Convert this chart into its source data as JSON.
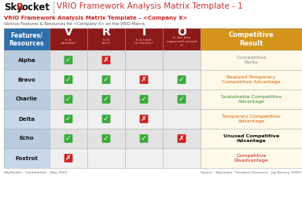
{
  "title": "VRIO Framework Analysis Matrix Template - 1",
  "subtitle": "VRIO Framework Analysis Matrix Template – <Company X>",
  "subtitle2": "Various Features & Resources for <Company X> on the VRIO Matrix.",
  "footer_left": "SkyRocket – Confidential – May 2022",
  "footer_right": "Source : Skyrocket, Timothée Denouers,  Jay Barney (1991)",
  "header_col0": "Features/\nResources",
  "header_cols": [
    "V",
    "R",
    "I",
    "O"
  ],
  "header_subs": [
    "Is it\nvaluable?",
    "Is it\nrare?",
    "Is it hard\nto imitate?",
    "Is the firm\norganised around\nit?"
  ],
  "header_result": "Competitive\nResult",
  "rows": [
    "Alpha",
    "Bravo",
    "Charlie",
    "Delta",
    "Echo",
    "Foxtrot"
  ],
  "checks": [
    [
      1,
      0,
      null,
      null
    ],
    [
      1,
      1,
      0,
      1
    ],
    [
      1,
      1,
      1,
      1
    ],
    [
      1,
      1,
      0,
      null
    ],
    [
      1,
      1,
      1,
      0
    ],
    [
      0,
      null,
      null,
      null
    ]
  ],
  "results": [
    "Competitive\nParity",
    "Realized Temporary\nCompetitive Advantage",
    "Sustainable Competitive\nAdvantage",
    "Temporary Competitive\nAdvantage",
    "Unused Competitive\nAdvantage",
    "Competitive\nDisadvantage"
  ],
  "result_colors": [
    "#888888",
    "#d45f00",
    "#2e8b2e",
    "#d45f00",
    "#111111",
    "#cc1111"
  ],
  "bg_color": "#ffffff",
  "header_col0_bg": "#2e6fad",
  "header_vrio_bg": "#8b1a1a",
  "header_result_bg": "#d4941a",
  "result_bg": "#fef9e8",
  "row_bg_odd": "#e2e2e2",
  "row_bg_even": "#f0f0f0",
  "col0_bg_odd": "#b8ccdd",
  "col0_bg_even": "#c8d8e8",
  "check_bg": "#3aaa3a",
  "cross_bg": "#cc2222",
  "check_color": "#ffffff",
  "cross_color": "#ffffff",
  "grid_color": "#aaaaaa"
}
